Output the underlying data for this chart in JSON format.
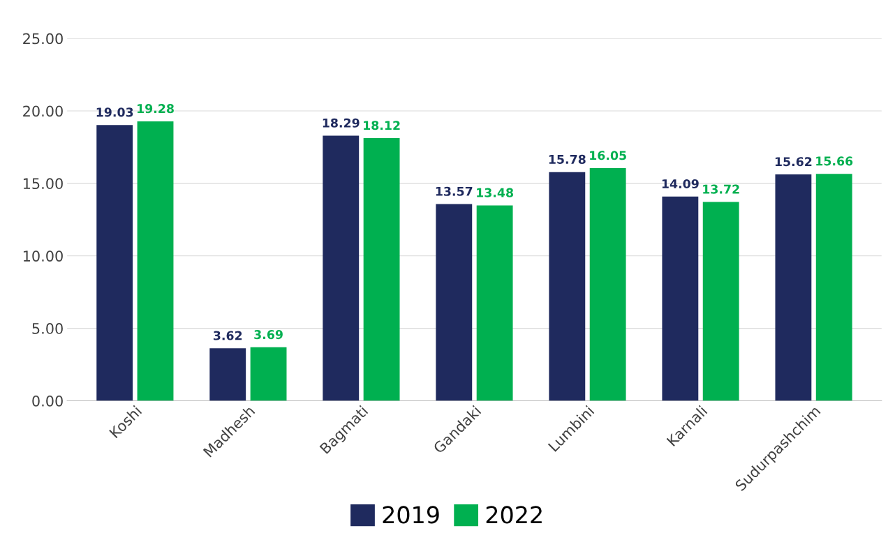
{
  "chart_data": {
    "type": "bar",
    "categories": [
      "Koshi",
      "Madhesh",
      "Bagmati",
      "Gandaki",
      "Lumbini",
      "Karnali",
      "Sudurpashchim"
    ],
    "series": [
      {
        "name": "2019",
        "color": "#1f2a5e",
        "values": [
          19.03,
          3.62,
          18.29,
          13.57,
          15.78,
          14.09,
          15.62
        ]
      },
      {
        "name": "2022",
        "color": "#00b050",
        "values": [
          19.28,
          3.69,
          18.12,
          13.48,
          16.05,
          13.72,
          15.66
        ]
      }
    ],
    "ylim": [
      0,
      25
    ],
    "yticks": [
      {
        "value": 0,
        "label": "0.00"
      },
      {
        "value": 5,
        "label": "5.00"
      },
      {
        "value": 10,
        "label": "10.00"
      },
      {
        "value": 15,
        "label": "15.00"
      },
      {
        "value": 20,
        "label": "20.00"
      },
      {
        "value": 25,
        "label": "25.00"
      }
    ],
    "grid": "y",
    "legend": "bottom",
    "data_labels": true
  }
}
